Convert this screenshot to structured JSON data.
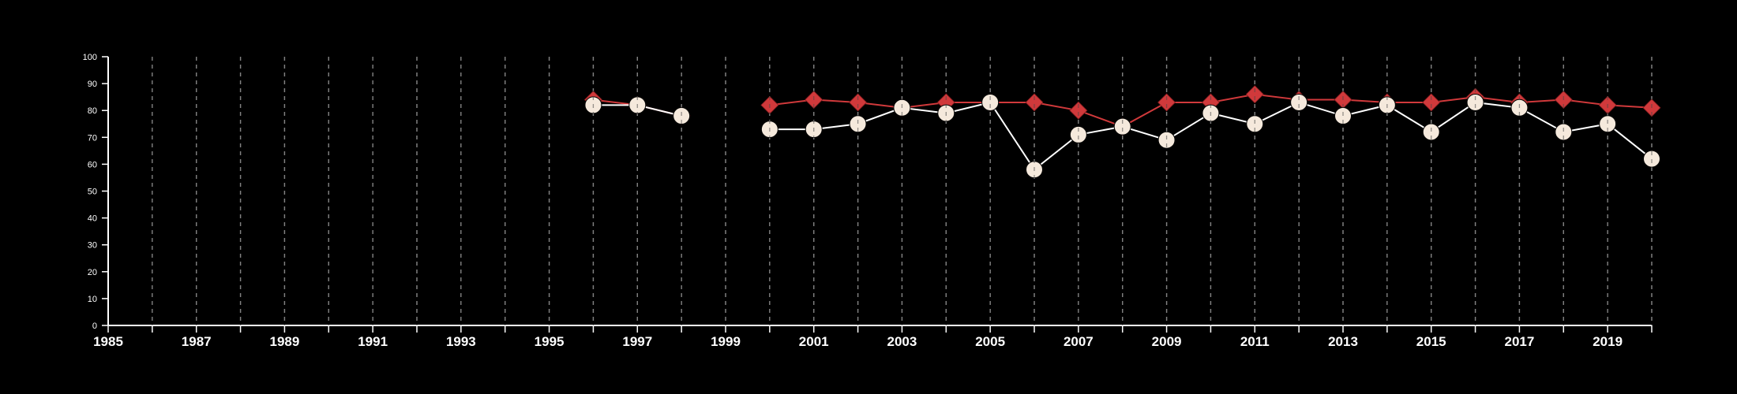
{
  "chart_data": {
    "type": "line",
    "title": "",
    "xlabel": "",
    "ylabel": "",
    "xlim": [
      1985,
      2020
    ],
    "ylim": [
      0,
      100
    ],
    "x_ticks": [
      1985,
      1987,
      1989,
      1991,
      1993,
      1995,
      1997,
      1999,
      2001,
      2003,
      2005,
      2007,
      2009,
      2011,
      2013,
      2015,
      2017,
      2019
    ],
    "y_ticks": [
      0,
      10,
      20,
      30,
      40,
      50,
      60,
      70,
      80,
      90,
      100
    ],
    "grid": "vertical dashed lines at each year",
    "legend": "none",
    "series": [
      {
        "marker": "diamond",
        "color": "#d0393b",
        "points": [
          {
            "x": 1996,
            "y": 84
          },
          {
            "x": 1997,
            "y": 82
          },
          {
            "x": 1998,
            "y": 78
          },
          {
            "x": 2000,
            "y": 82
          },
          {
            "x": 2001,
            "y": 84
          },
          {
            "x": 2002,
            "y": 83
          },
          {
            "x": 2003,
            "y": 81
          },
          {
            "x": 2004,
            "y": 83
          },
          {
            "x": 2005,
            "y": 83
          },
          {
            "x": 2006,
            "y": 83
          },
          {
            "x": 2007,
            "y": 80
          },
          {
            "x": 2008,
            "y": 74
          },
          {
            "x": 2009,
            "y": 83
          },
          {
            "x": 2010,
            "y": 83
          },
          {
            "x": 2011,
            "y": 86
          },
          {
            "x": 2012,
            "y": 84
          },
          {
            "x": 2013,
            "y": 84
          },
          {
            "x": 2014,
            "y": 83
          },
          {
            "x": 2015,
            "y": 83
          },
          {
            "x": 2016,
            "y": 85
          },
          {
            "x": 2017,
            "y": 83
          },
          {
            "x": 2018,
            "y": 84
          },
          {
            "x": 2019,
            "y": 82
          },
          {
            "x": 2020,
            "y": 81
          }
        ]
      },
      {
        "marker": "circle",
        "color": "#f5e9dc",
        "points": [
          {
            "x": 1996,
            "y": 82
          },
          {
            "x": 1997,
            "y": 82
          },
          {
            "x": 1998,
            "y": 78
          },
          {
            "x": 2000,
            "y": 73
          },
          {
            "x": 2001,
            "y": 73
          },
          {
            "x": 2002,
            "y": 75
          },
          {
            "x": 2003,
            "y": 81
          },
          {
            "x": 2004,
            "y": 79
          },
          {
            "x": 2005,
            "y": 83
          },
          {
            "x": 2006,
            "y": 58
          },
          {
            "x": 2007,
            "y": 71
          },
          {
            "x": 2008,
            "y": 74
          },
          {
            "x": 2009,
            "y": 69
          },
          {
            "x": 2010,
            "y": 79
          },
          {
            "x": 2011,
            "y": 75
          },
          {
            "x": 2012,
            "y": 83
          },
          {
            "x": 2013,
            "y": 78
          },
          {
            "x": 2014,
            "y": 82
          },
          {
            "x": 2015,
            "y": 72
          },
          {
            "x": 2016,
            "y": 83
          },
          {
            "x": 2017,
            "y": 81
          },
          {
            "x": 2018,
            "y": 72
          },
          {
            "x": 2019,
            "y": 75
          },
          {
            "x": 2020,
            "y": 62
          }
        ]
      }
    ]
  }
}
